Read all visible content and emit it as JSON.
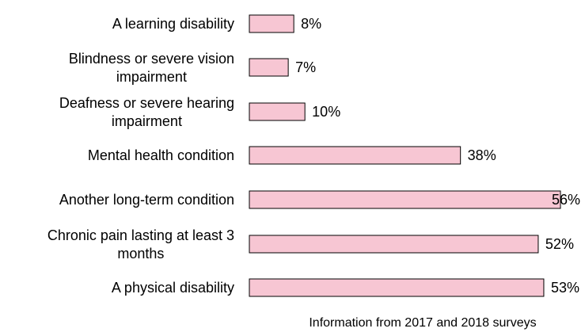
{
  "chart_data": {
    "type": "bar",
    "orientation": "horizontal",
    "categories": [
      [
        "A learning disability"
      ],
      [
        "Blindness or severe vision",
        "impairment"
      ],
      [
        "Deafness or severe hearing",
        "impairment"
      ],
      [
        "Mental health condition"
      ],
      [
        "Another long-term condition"
      ],
      [
        "Chronic pain lasting at least 3",
        "months"
      ],
      [
        "A physical disability"
      ]
    ],
    "values": [
      8,
      7,
      10,
      38,
      56,
      52,
      53
    ],
    "value_labels": [
      "8%",
      "7%",
      "10%",
      "38%",
      "56%",
      "52%",
      "53%"
    ],
    "unit": "%",
    "xlim": [
      0,
      56
    ],
    "grid": false,
    "legend": "none",
    "bar_color": "#f7c6d3",
    "bar_border_color": "#000000",
    "note": "Information from 2017 and 2018 surveys"
  }
}
